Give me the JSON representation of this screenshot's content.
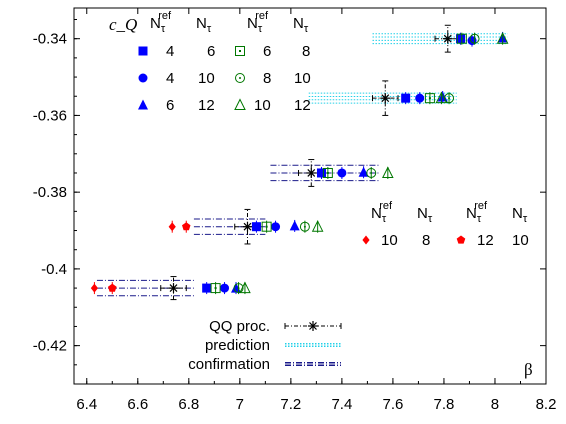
{
  "chart_data": {
    "type": "scatter",
    "title": "",
    "ylabel": "c_Q",
    "xlabel": "β",
    "xlim": [
      6.35,
      8.2
    ],
    "ylim": [
      -0.43,
      -0.332
    ],
    "xticks": [
      "6.4",
      "6.6",
      "6.8",
      "7",
      "7.2",
      "7.4",
      "7.6",
      "7.8",
      "8",
      "8.2"
    ],
    "xtick_values": [
      6.4,
      6.6,
      6.8,
      7.0,
      7.2,
      7.4,
      7.6,
      7.8,
      8.0,
      8.2
    ],
    "yticks": [
      "-0.34",
      "-0.36",
      "-0.38",
      "-0.4",
      "-0.42"
    ],
    "ytick_values": [
      -0.34,
      -0.36,
      -0.38,
      -0.4,
      -0.42
    ],
    "legend": {
      "col_header_ref": "N",
      "col_header_ref_sup": "ref",
      "col_header_ref_sub": "τ",
      "col_header": "N",
      "col_header_sub": "τ",
      "entries": [
        {
          "ref": "4",
          "nt": "6"
        },
        {
          "ref": "4",
          "nt": "10"
        },
        {
          "ref": "6",
          "nt": "12"
        },
        {
          "ref": "6",
          "nt": "8"
        },
        {
          "ref": "8",
          "nt": "10"
        },
        {
          "ref": "10",
          "nt": "12"
        },
        {
          "ref": "10",
          "nt": "8"
        },
        {
          "ref": "12",
          "nt": "10"
        }
      ],
      "lines": [
        "QQ proc.",
        "prediction",
        "confirmation"
      ]
    },
    "series": [
      {
        "symbol": "square-filled",
        "color": "#0000ff",
        "points": [
          [
            7.865,
            -0.34
          ],
          [
            7.65,
            -0.3555
          ],
          [
            7.32,
            -0.375
          ],
          [
            7.065,
            -0.389
          ],
          [
            6.87,
            -0.405
          ]
        ]
      },
      {
        "symbol": "circle-filled",
        "color": "#0000ff",
        "points": [
          [
            7.91,
            -0.3405
          ],
          [
            7.705,
            -0.3555
          ],
          [
            7.4,
            -0.375
          ],
          [
            7.14,
            -0.389
          ],
          [
            6.94,
            -0.405
          ]
        ]
      },
      {
        "symbol": "triangle-filled",
        "color": "#0000ff",
        "points": [
          [
            8.03,
            -0.3398
          ],
          [
            7.795,
            -0.3552
          ],
          [
            7.485,
            -0.3748
          ],
          [
            7.215,
            -0.3888
          ],
          [
            6.985,
            -0.405
          ]
        ]
      },
      {
        "symbol": "square-open-dot",
        "color": "#007700",
        "points": [
          [
            7.87,
            -0.34
          ],
          [
            7.745,
            -0.3555
          ],
          [
            7.345,
            -0.375
          ],
          [
            7.105,
            -0.389
          ],
          [
            6.905,
            -0.405
          ]
        ]
      },
      {
        "symbol": "circle-open-dot",
        "color": "#007700",
        "points": [
          [
            7.92,
            -0.34
          ],
          [
            7.82,
            -0.3555
          ],
          [
            7.515,
            -0.375
          ],
          [
            7.255,
            -0.389
          ],
          [
            6.995,
            -0.405
          ]
        ]
      },
      {
        "symbol": "triangle-open",
        "color": "#007700",
        "points": [
          [
            8.03,
            -0.34
          ],
          [
            7.79,
            -0.3555
          ],
          [
            7.58,
            -0.375
          ],
          [
            7.305,
            -0.389
          ],
          [
            7.02,
            -0.405
          ]
        ]
      },
      {
        "symbol": "diamond-filled",
        "color": "#ff0000",
        "points": [
          [
            6.735,
            -0.389
          ],
          [
            6.43,
            -0.405
          ]
        ]
      },
      {
        "symbol": "pentagon-filled",
        "color": "#ff0000",
        "points": [
          [
            6.79,
            -0.389
          ],
          [
            6.5,
            -0.405
          ]
        ]
      }
    ],
    "qq_proc": [
      {
        "x": 7.815,
        "y": -0.34,
        "xerr": 0.05,
        "yerr": 0.0035
      },
      {
        "x": 7.57,
        "y": -0.3555,
        "xerr": 0.05,
        "yerr": 0.0045
      },
      {
        "x": 7.28,
        "y": -0.375,
        "xerr": 0.05,
        "yerr": 0.0035
      },
      {
        "x": 7.03,
        "y": -0.389,
        "xerr": 0.05,
        "yerr": 0.0045
      },
      {
        "x": 6.74,
        "y": -0.405,
        "xerr": 0.05,
        "yerr": 0.003
      }
    ],
    "prediction_bands": [
      {
        "x0": 7.52,
        "x1": 8.05,
        "y": -0.34,
        "half": 0.0013
      },
      {
        "x0": 7.27,
        "x1": 7.85,
        "y": -0.3555,
        "half": 0.0013
      }
    ],
    "confirmation_bands": [
      {
        "x0": 7.12,
        "x1": 7.55,
        "y": -0.375,
        "half": 0.0008
      },
      {
        "x0": 6.82,
        "x1": 7.1,
        "y": -0.389,
        "half": 0.0008
      },
      {
        "x0": 6.44,
        "x1": 6.82,
        "y": -0.405,
        "half": 0.0008
      }
    ]
  }
}
